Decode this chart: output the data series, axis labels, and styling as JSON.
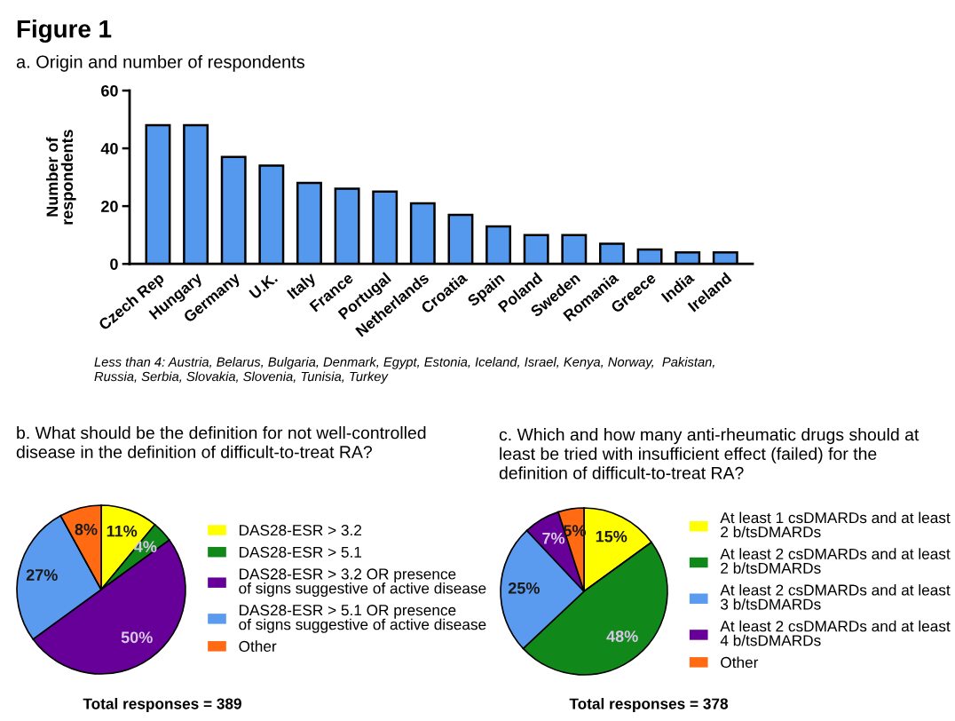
{
  "chart_data": [
    {
      "type": "bar",
      "title": "Figure 1",
      "subtitle": "a. Origin and number of respondents",
      "ylabel": "Number of\nrespondents",
      "categories": [
        "Czech Rep",
        "Hungary",
        "Germany",
        "U.K.",
        "Italy",
        "France",
        "Portugal",
        "Netherlands",
        "Croatia",
        "Spain",
        "Poland",
        "Sweden",
        "Romania",
        "Greece",
        "India",
        "Ireland"
      ],
      "values": [
        48,
        48,
        37,
        34,
        28,
        26,
        25,
        21,
        17,
        13,
        10,
        10,
        7,
        5,
        4,
        4
      ],
      "color": "#5599ee",
      "ylim": [
        0,
        60
      ],
      "yticks": [
        0,
        20,
        40,
        60
      ],
      "annotations": [
        "Less than 4: Austria, Belarus, Bulgaria, Denmark, Egypt, Estonia, Iceland, Israel, Kenya, Norway,  Pakistan,\nRussia, Serbia, Slovakia, Slovenia, Tunisia, Turkey"
      ]
    },
    {
      "type": "pie",
      "title": "b. What should be the definition for not well-controlled\ndisease in the definition of difficult-to-treat RA?",
      "categories": [
        "DAS28-ESR > 3.2",
        "DAS28-ESR > 5.1",
        "DAS28-ESR > 3.2 OR presence\nof signs suggestive of active disease",
        "DAS28-ESR > 5.1 OR presence\nof signs suggestive of active disease",
        "Other"
      ],
      "values": [
        11,
        4,
        50,
        27,
        8
      ],
      "colors": [
        "#ffff00",
        "#11881a",
        "#660099",
        "#5b9bef",
        "#ff6a13"
      ],
      "value_labels": [
        "11%",
        "4%",
        "50%",
        "27%",
        "8%"
      ],
      "legend": "right",
      "annotations": [
        "Total responses = 389"
      ]
    },
    {
      "type": "pie",
      "title": "c. Which and how many anti-rheumatic drugs should at\nleast be tried with insufficient effect (failed) for the\ndefinition of difficult-to-treat RA?",
      "categories": [
        "At least 1 csDMARDs and at least\n2 b/tsDMARDs",
        "At least 2 csDMARDs and at least\n2 b/tsDMARDs",
        "At least 2 csDMARDs and at least\n3 b/tsDMARDs",
        "At least 2 csDMARDs and at least\n4 b/tsDMARDs",
        "Other"
      ],
      "values": [
        15,
        48,
        25,
        7,
        5
      ],
      "colors": [
        "#ffff00",
        "#11881a",
        "#5b9bef",
        "#660099",
        "#ff6a13"
      ],
      "value_labels": [
        "15%",
        "48%",
        "25%",
        "7%",
        "5%"
      ],
      "legend": "right",
      "annotations": [
        "Total responses = 378"
      ]
    }
  ]
}
